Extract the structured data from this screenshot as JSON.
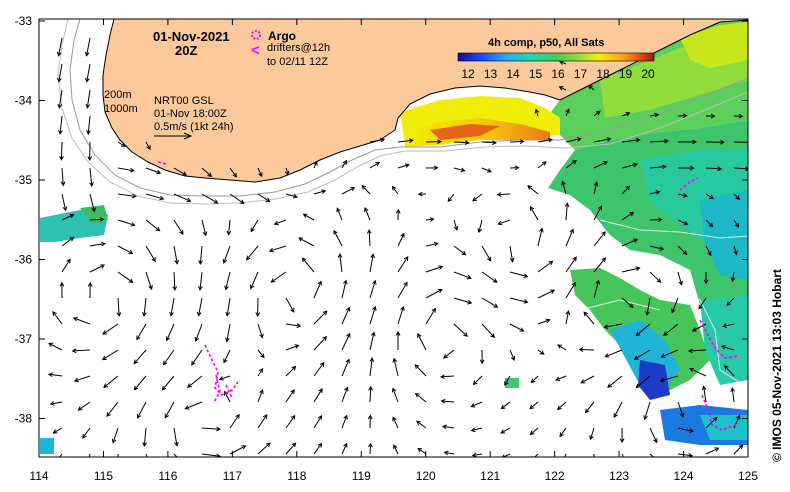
{
  "map": {
    "date": "01-Nov-2021",
    "time": "20Z",
    "argo_label": "Argo",
    "drifters_line1": "drifters@12h",
    "drifters_line2": "to 02/11 12Z",
    "depth_200": "200m",
    "depth_1000": "1000m",
    "model_line1": "NRT00 GSL",
    "model_line2": "01-Nov 18:00Z",
    "scale_label": "0.5m/s (1kt 24h)",
    "colorbar_title": "4h comp, p50, All Sats",
    "colorbar_ticks": [
      "12",
      "13",
      "14",
      "15",
      "16",
      "17",
      "18",
      "19",
      "20"
    ],
    "credit": "©  IMOS 05-Nov-2021 13:03 Hobart",
    "lon_ticks": [
      "114",
      "115",
      "116",
      "117",
      "118",
      "119",
      "120",
      "121",
      "122",
      "123",
      "124",
      "125"
    ],
    "lat_ticks": [
      "-33",
      "-34",
      "-35",
      "-36",
      "-37",
      "-38"
    ],
    "colors": {
      "land": "#fcc99b",
      "drifter": "#ff00ff",
      "colorbar": [
        "#1a0a9c",
        "#1c49ff",
        "#27b0f0",
        "#1bd9b0",
        "#44c85c",
        "#92e23a",
        "#f4f000",
        "#f89d12",
        "#e44b0e",
        "#a3141e"
      ]
    }
  }
}
